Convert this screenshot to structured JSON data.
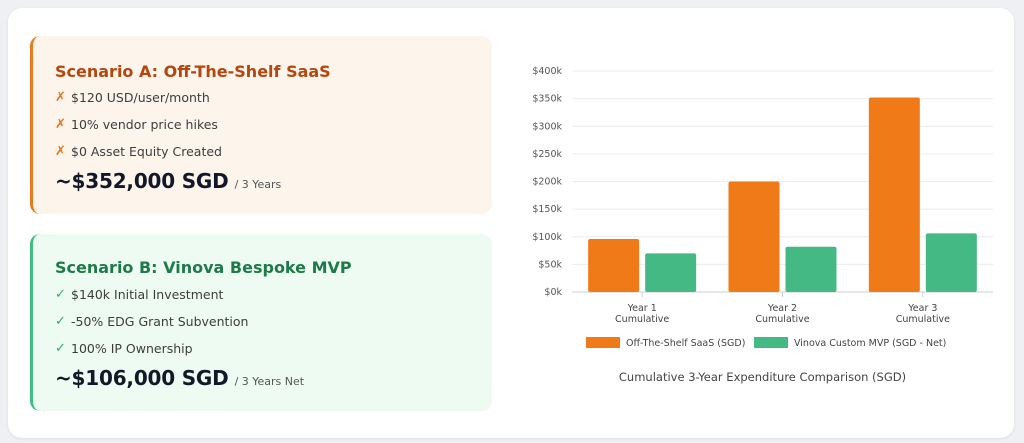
{
  "scenario_a": {
    "title": "Scenario A: Off-The-Shelf SaaS",
    "items": [
      "$120 USD/user/month",
      "10% vendor price hikes",
      "$0 Asset Equity Created"
    ],
    "mark": "✗",
    "total": "~$352,000 SGD",
    "period": "/ 3 Years",
    "accent": "#ea7a1c"
  },
  "scenario_b": {
    "title": "Scenario B: Vinova Bespoke MVP",
    "items": [
      "$140k Initial Investment",
      "-50% EDG Grant Subvention",
      "100% IP Ownership"
    ],
    "mark": "✓",
    "total": "~$106,000 SGD",
    "period": "/ 3 Years Net",
    "accent": "#3fbf7f"
  },
  "chart_data": {
    "type": "bar",
    "title": "Cumulative 3-Year Expenditure Comparison (SGD)",
    "categories": [
      [
        "Year 1",
        "Cumulative"
      ],
      [
        "Year 2",
        "Cumulative"
      ],
      [
        "Year 3",
        "Cumulative"
      ]
    ],
    "series": [
      {
        "name": "Off-The-Shelf SaaS (SGD)",
        "color": "#f07a18",
        "values": [
          96000,
          200000,
          352000
        ]
      },
      {
        "name": "Vinova Custom MVP (SGD - Net)",
        "color": "#45b983",
        "values": [
          70000,
          82000,
          106000
        ]
      }
    ],
    "ylim": [
      0,
      400000
    ],
    "yticks": [
      "$0k",
      "$50k",
      "$100k",
      "$150k",
      "$200k",
      "$250k",
      "$300k",
      "$350k",
      "$400k"
    ],
    "grid": true,
    "legend": "bottom"
  }
}
